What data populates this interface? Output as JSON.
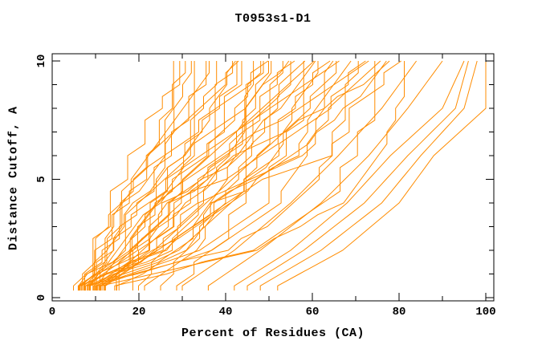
{
  "title": "T0953s1-D1",
  "chart_data": {
    "type": "line",
    "title": "T0953s1-D1",
    "xlabel": "Percent of Residues (CA)",
    "ylabel": "Distance Cutoff, A",
    "grid": false,
    "legend": "none",
    "line_color": "#ff8c00",
    "axis_color": "#000000",
    "x_axis": {
      "range": [
        0,
        102
      ],
      "minor_step": 10,
      "labeled_ticks": [
        0,
        20,
        40,
        60,
        80,
        100
      ]
    },
    "y_axis": {
      "range": [
        -0.15,
        10.3
      ],
      "minor_step": 1,
      "labeled_ticks": [
        0,
        5,
        10
      ]
    },
    "anchor_cutoffs": [
      0.5,
      2,
      4,
      6,
      8,
      10
    ],
    "series_note": "each series = one model curve; p = percent of residues at anchor distance cutoffs",
    "series": [
      {
        "p": [
          6,
          17,
          23,
          26,
          27,
          28
        ]
      },
      {
        "p": [
          7,
          12,
          17,
          22,
          27,
          30
        ]
      },
      {
        "p": [
          8,
          10,
          13,
          18,
          25,
          31
        ]
      },
      {
        "p": [
          6,
          14,
          17,
          26,
          29,
          33
        ]
      },
      {
        "p": [
          9,
          22,
          29,
          32,
          33,
          34
        ]
      },
      {
        "p": [
          7,
          13,
          20,
          26,
          32,
          36
        ]
      },
      {
        "p": [
          10,
          12,
          16,
          22,
          30,
          37
        ]
      },
      {
        "p": [
          6,
          16,
          19,
          31,
          34,
          39
        ]
      },
      {
        "p": [
          8,
          24,
          33,
          37,
          39,
          40
        ]
      },
      {
        "p": [
          11,
          17,
          25,
          31,
          37,
          42
        ]
      },
      {
        "p": [
          7,
          10,
          15,
          23,
          34,
          43
        ]
      },
      {
        "p": [
          9,
          20,
          23,
          36,
          40,
          45
        ]
      },
      {
        "p": [
          6,
          26,
          37,
          42,
          45,
          46
        ]
      },
      {
        "p": [
          12,
          19,
          28,
          35,
          43,
          48
        ]
      },
      {
        "p": [
          8,
          11,
          17,
          26,
          39,
          49
        ]
      },
      {
        "p": [
          10,
          22,
          26,
          41,
          45,
          51
        ]
      },
      {
        "p": [
          7,
          30,
          42,
          48,
          51,
          52
        ]
      },
      {
        "p": [
          13,
          21,
          31,
          40,
          48,
          54
        ]
      },
      {
        "p": [
          9,
          13,
          19,
          30,
          44,
          55
        ]
      },
      {
        "p": [
          6,
          21,
          26,
          44,
          49,
          57
        ]
      },
      {
        "p": [
          11,
          35,
          48,
          53,
          57,
          58
        ]
      },
      {
        "p": [
          8,
          18,
          31,
          42,
          52,
          60
        ]
      },
      {
        "p": [
          14,
          18,
          24,
          35,
          49,
          61
        ]
      },
      {
        "p": [
          7,
          24,
          29,
          49,
          55,
          63
        ]
      },
      {
        "p": [
          10,
          37,
          52,
          59,
          62,
          64
        ]
      },
      {
        "p": [
          12,
          23,
          36,
          47,
          58,
          66
        ]
      },
      {
        "p": [
          8,
          13,
          21,
          35,
          52,
          67
        ]
      },
      {
        "p": [
          15,
          31,
          37,
          56,
          61,
          69
        ]
      },
      {
        "p": [
          9,
          40,
          57,
          64,
          68,
          70
        ]
      },
      {
        "p": [
          13,
          25,
          40,
          51,
          63,
          72
        ]
      },
      {
        "p": [
          10,
          15,
          24,
          38,
          57,
          73
        ]
      },
      {
        "p": [
          7,
          27,
          34,
          58,
          65,
          75
        ]
      },
      {
        "p": [
          16,
          46,
          63,
          70,
          74,
          76
        ]
      },
      {
        "p": [
          11,
          24,
          41,
          55,
          68,
          78
        ]
      },
      {
        "p": [
          14,
          19,
          28,
          43,
          63,
          79
        ]
      },
      {
        "p": [
          8,
          30,
          37,
          63,
          70,
          81
        ]
      },
      {
        "p": [
          12,
          47,
          67,
          75,
          80,
          82
        ]
      },
      {
        "p": [
          20,
          26,
          34,
          40,
          46,
          50
        ]
      },
      {
        "p": [
          18,
          20,
          24,
          30,
          38,
          44
        ]
      },
      {
        "p": [
          22,
          34,
          38,
          52,
          56,
          62
        ]
      },
      {
        "p": [
          25,
          31,
          39,
          45,
          51,
          56
        ]
      },
      {
        "p": [
          28,
          38,
          43,
          45,
          46,
          47
        ]
      },
      {
        "p": [
          52,
          67,
          80,
          88,
          100,
          100
        ],
        "smooth": true
      },
      {
        "p": [
          48,
          62,
          76,
          85,
          95,
          98
        ],
        "smooth": true
      },
      {
        "p": [
          45,
          58,
          72,
          82,
          93,
          96
        ],
        "smooth": true
      },
      {
        "p": [
          42,
          55,
          68,
          78,
          90,
          95
        ],
        "smooth": true
      },
      {
        "p": [
          36,
          48,
          62,
          73,
          82,
          90
        ],
        "smooth": true
      },
      {
        "p": [
          30,
          42,
          55,
          66,
          76,
          84
        ],
        "smooth": true
      }
    ]
  }
}
